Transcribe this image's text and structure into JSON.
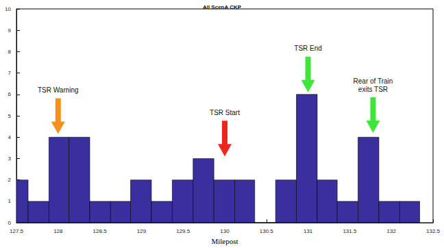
{
  "chart_data": {
    "type": "histogram",
    "title": "All ScenA CKP",
    "x_label": "Milepost",
    "bins": [
      127.39,
      127.64,
      127.89,
      128.13,
      128.38,
      128.63,
      128.87,
      129.12,
      129.37,
      129.62,
      129.87,
      130.12,
      130.36,
      130.61,
      130.86,
      131.11,
      131.35,
      131.6,
      131.85,
      132.1,
      132.34
    ],
    "values": [
      2,
      1,
      4,
      4,
      1,
      1,
      2,
      1,
      2,
      3,
      2,
      2,
      0,
      2,
      6,
      2,
      1,
      4,
      1,
      1
    ],
    "color": "#3b2f9e",
    "xlim": [
      127.5,
      132.5
    ],
    "xticks": [
      127.5,
      128,
      128.5,
      129,
      129.5,
      130,
      130.5,
      131,
      131.5,
      132,
      132.5
    ],
    "ylim": [
      0,
      10
    ],
    "yticks": [
      0,
      1,
      2,
      3,
      4,
      5,
      6,
      7,
      8,
      9,
      10
    ],
    "grid": false,
    "annotations": [
      {
        "text": "TSR Warning",
        "x": 128,
        "y": 4.15,
        "color": "#f5901e"
      },
      {
        "text": "TSR Start",
        "x": 130,
        "y": 3.1,
        "color": "#f0261e"
      },
      {
        "text": "TSR End",
        "x": 131,
        "y": 6.1,
        "color": "#3fe63a"
      },
      {
        "text": "Rear of Train\nexits TSR",
        "x": 131.78,
        "y": 4.2,
        "color": "#3fe63a"
      }
    ]
  }
}
